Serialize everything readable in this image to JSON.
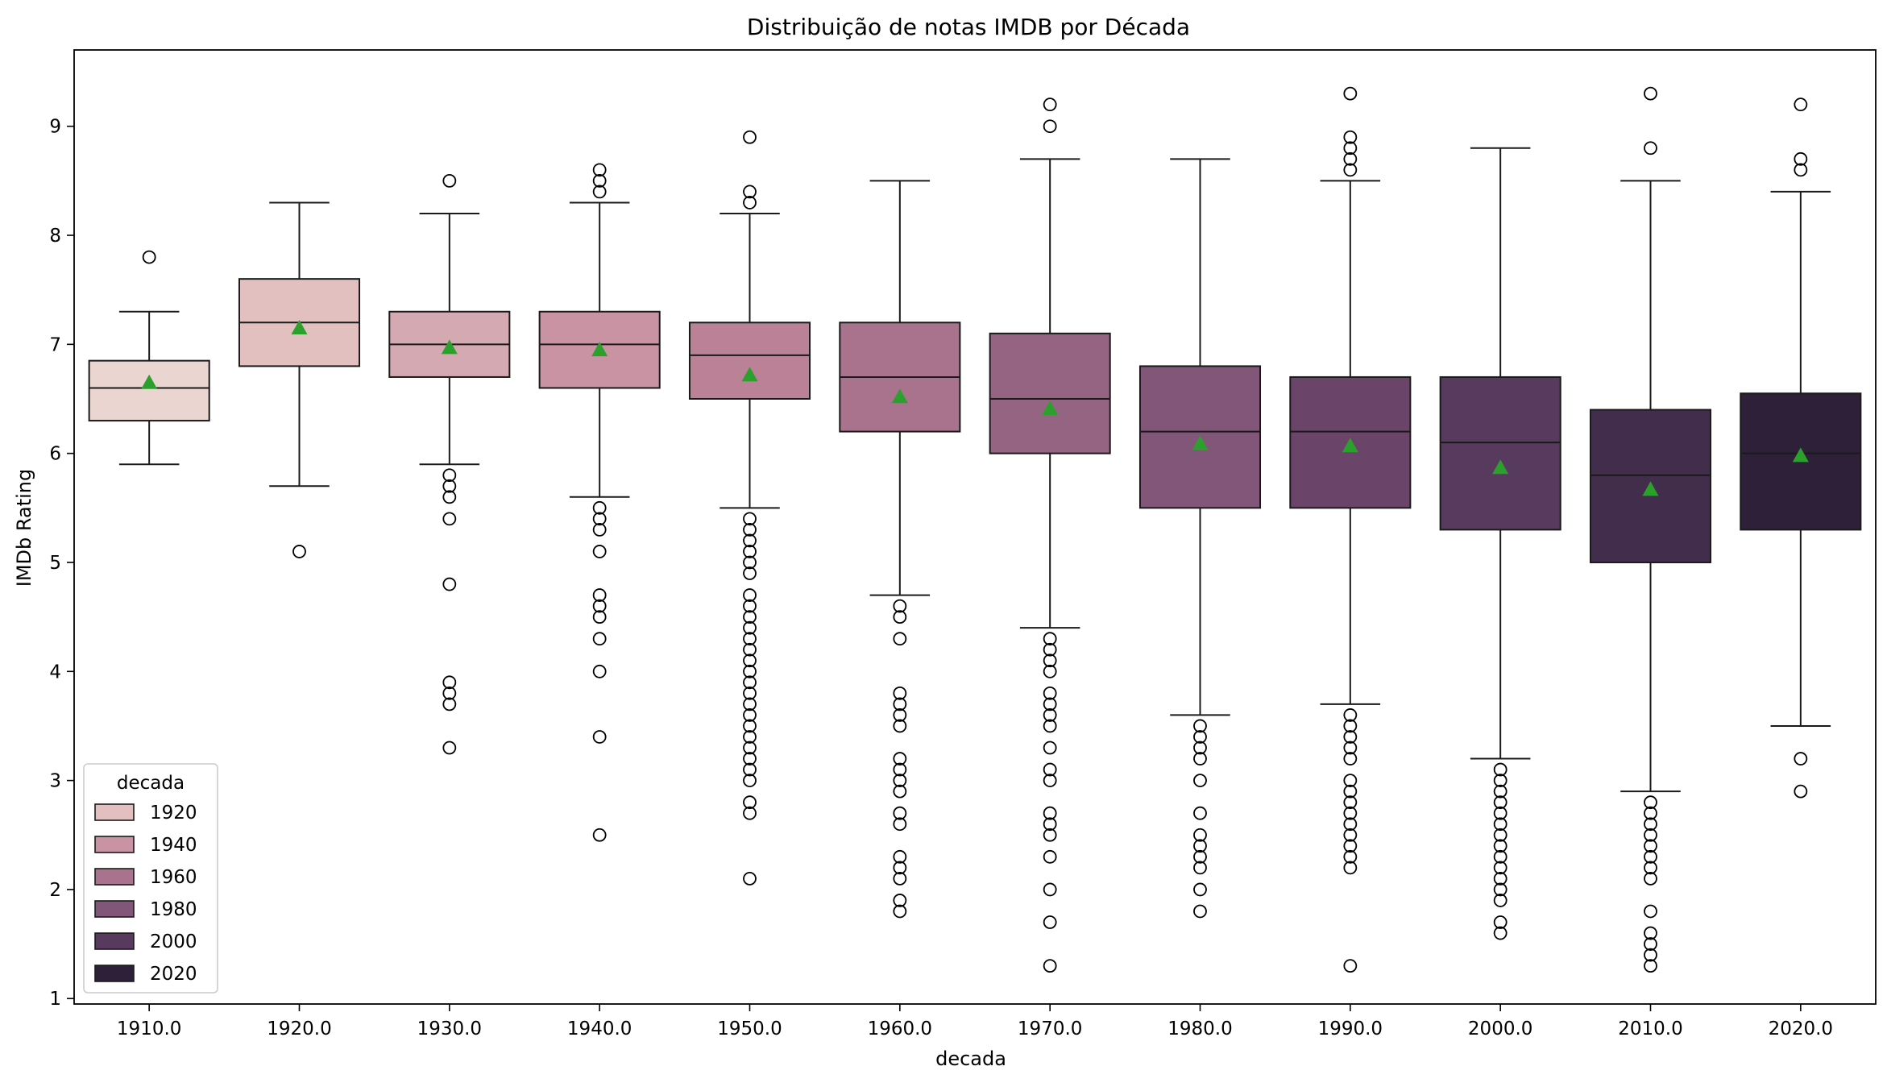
{
  "chart_data": {
    "type": "boxplot",
    "title": "Distribuição de notas IMDB por Década",
    "xlabel": "decada",
    "ylabel": "IMDb Rating",
    "ylim": [
      0.95,
      9.7
    ],
    "yticks": [
      "1",
      "2",
      "3",
      "4",
      "5",
      "6",
      "7",
      "8",
      "9"
    ],
    "categories": [
      "1910.0",
      "1920.0",
      "1930.0",
      "1940.0",
      "1950.0",
      "1960.0",
      "1970.0",
      "1980.0",
      "1990.0",
      "2000.0",
      "2010.0",
      "2020.0"
    ],
    "series": [
      {
        "category": "1910.0",
        "color": "#ead5d0",
        "q1": 6.3,
        "median": 6.6,
        "q3": 6.85,
        "whisker_low": 5.9,
        "whisker_high": 7.3,
        "mean": 6.65,
        "outliers": [
          7.8
        ]
      },
      {
        "category": "1920.0",
        "color": "#e2c0c0",
        "q1": 6.8,
        "median": 7.2,
        "q3": 7.6,
        "whisker_low": 5.7,
        "whisker_high": 8.3,
        "mean": 7.15,
        "outliers": [
          5.1
        ]
      },
      {
        "category": "1930.0",
        "color": "#d5a9b1",
        "q1": 6.7,
        "median": 7.0,
        "q3": 7.3,
        "whisker_low": 5.9,
        "whisker_high": 8.2,
        "mean": 6.97,
        "outliers": [
          8.5,
          5.8,
          5.7,
          5.6,
          5.4,
          4.8,
          3.9,
          3.8,
          3.7,
          3.3
        ]
      },
      {
        "category": "1940.0",
        "color": "#c993a4",
        "q1": 6.6,
        "median": 7.0,
        "q3": 7.3,
        "whisker_low": 5.6,
        "whisker_high": 8.3,
        "mean": 6.95,
        "outliers": [
          8.6,
          8.5,
          8.4,
          5.5,
          5.4,
          5.3,
          5.1,
          4.7,
          4.6,
          4.5,
          4.3,
          4.0,
          3.4,
          2.5
        ]
      },
      {
        "category": "1950.0",
        "color": "#bb8196",
        "q1": 6.5,
        "median": 6.9,
        "q3": 7.2,
        "whisker_low": 5.5,
        "whisker_high": 8.2,
        "mean": 6.72,
        "outliers": [
          8.9,
          8.4,
          8.3,
          5.4,
          5.3,
          5.2,
          5.1,
          5.0,
          4.9,
          4.7,
          4.6,
          4.5,
          4.4,
          4.3,
          4.2,
          4.1,
          4.0,
          3.9,
          3.8,
          3.7,
          3.6,
          3.5,
          3.4,
          3.3,
          3.2,
          3.1,
          3.0,
          2.8,
          2.7,
          2.1
        ]
      },
      {
        "category": "1960.0",
        "color": "#a9728d",
        "q1": 6.2,
        "median": 6.7,
        "q3": 7.2,
        "whisker_low": 4.7,
        "whisker_high": 8.5,
        "mean": 6.52,
        "outliers": [
          4.6,
          4.5,
          4.3,
          3.8,
          3.7,
          3.6,
          3.5,
          3.2,
          3.1,
          3.0,
          2.9,
          2.7,
          2.6,
          2.3,
          2.2,
          2.1,
          1.9,
          1.8
        ]
      },
      {
        "category": "1970.0",
        "color": "#956482",
        "q1": 6.0,
        "median": 6.5,
        "q3": 7.1,
        "whisker_low": 4.4,
        "whisker_high": 8.7,
        "mean": 6.41,
        "outliers": [
          9.2,
          9.0,
          4.3,
          4.2,
          4.1,
          4.0,
          3.8,
          3.7,
          3.6,
          3.5,
          3.3,
          3.1,
          3.0,
          2.7,
          2.6,
          2.5,
          2.3,
          2.0,
          1.7,
          1.3
        ]
      },
      {
        "category": "1980.0",
        "color": "#825678",
        "q1": 5.5,
        "median": 6.2,
        "q3": 6.8,
        "whisker_low": 3.6,
        "whisker_high": 8.7,
        "mean": 6.09,
        "outliers": [
          3.5,
          3.4,
          3.3,
          3.2,
          3.0,
          2.7,
          2.5,
          2.4,
          2.3,
          2.2,
          2.0,
          1.8
        ]
      },
      {
        "category": "1990.0",
        "color": "#6b4569",
        "q1": 5.5,
        "median": 6.2,
        "q3": 6.7,
        "whisker_low": 3.7,
        "whisker_high": 8.5,
        "mean": 6.07,
        "outliers": [
          9.3,
          8.9,
          8.8,
          8.7,
          8.6,
          3.6,
          3.5,
          3.4,
          3.3,
          3.2,
          3.0,
          2.9,
          2.8,
          2.7,
          2.6,
          2.5,
          2.4,
          2.3,
          2.2,
          1.3
        ]
      },
      {
        "category": "2000.0",
        "color": "#573a5e",
        "q1": 5.3,
        "median": 6.1,
        "q3": 6.7,
        "whisker_low": 3.2,
        "whisker_high": 8.8,
        "mean": 5.87,
        "outliers": [
          3.1,
          3.0,
          2.9,
          2.8,
          2.7,
          2.6,
          2.5,
          2.4,
          2.3,
          2.2,
          2.1,
          2.0,
          1.9,
          1.7,
          1.6
        ]
      },
      {
        "category": "2010.0",
        "color": "#432d4d",
        "q1": 5.0,
        "median": 5.8,
        "q3": 6.4,
        "whisker_low": 2.9,
        "whisker_high": 8.5,
        "mean": 5.67,
        "outliers": [
          9.3,
          8.8,
          2.8,
          2.7,
          2.6,
          2.5,
          2.4,
          2.3,
          2.2,
          2.1,
          1.8,
          1.6,
          1.5,
          1.4,
          1.3
        ]
      },
      {
        "category": "2020.0",
        "color": "#2d2038",
        "q1": 5.3,
        "median": 6.0,
        "q3": 6.55,
        "whisker_low": 3.5,
        "whisker_high": 8.4,
        "mean": 5.98,
        "outliers": [
          9.2,
          8.7,
          8.6,
          3.2,
          2.9
        ]
      }
    ],
    "mean_marker_color": "#2ca02c",
    "legend": {
      "title": "decada",
      "position": "lower-left",
      "entries": [
        {
          "label": "1920",
          "color": "#e2c0c0"
        },
        {
          "label": "1940",
          "color": "#c993a4"
        },
        {
          "label": "1960",
          "color": "#a9728d"
        },
        {
          "label": "1980",
          "color": "#825678"
        },
        {
          "label": "2000",
          "color": "#573a5e"
        },
        {
          "label": "2020",
          "color": "#2d2038"
        }
      ]
    }
  }
}
